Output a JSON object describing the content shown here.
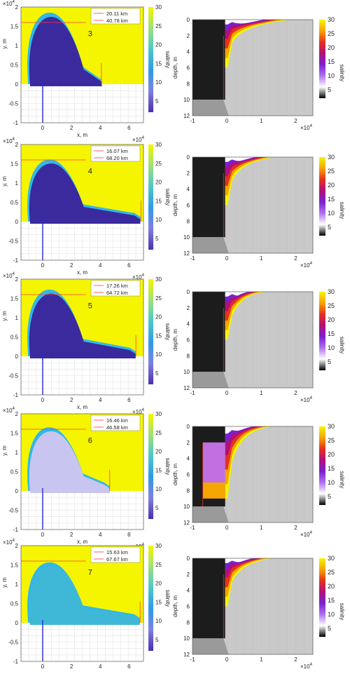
{
  "colors": {
    "background_yellow": "#f5f500",
    "plume_dark": "#3a2a9e",
    "plume_edge": "#33b8e6",
    "land_gray": "#c9c9c9",
    "dark_fill": "#1c1c1c",
    "red_line": "#ff3b30",
    "blue_line": "#2a2ad4",
    "label_yellow_text": "#111111"
  },
  "chart_data": [
    {
      "type": "heatmap",
      "view": "plan",
      "panel_number": "3",
      "legend": [
        "20.11 km",
        "40.78 km"
      ],
      "xlabel": "x, m",
      "ylabel": "y, m",
      "x_exponent": "×10",
      "x_exponent_power": "4",
      "y_exponent": "×10",
      "y_exponent_power": "4",
      "x_ticks": [
        "0",
        "2",
        "4",
        "6"
      ],
      "y_ticks": [
        "2",
        "1.5",
        "1",
        "0.5",
        "0",
        "-0.5",
        "-1"
      ],
      "colorbar_label": "salinity",
      "colorbar_ticks": [
        "30",
        "25",
        "20",
        "15",
        "10",
        "5"
      ],
      "colorbar_colors": [
        "#f5f500",
        "#9fe07a",
        "#4fc7c8",
        "#2d9be6",
        "#8080e0",
        "#4a2fb0"
      ],
      "xlim": [
        -1.5,
        7
      ],
      "ylim": [
        -1,
        2
      ],
      "plume_width_km": 20.11,
      "plume_length_km": 40.78
    },
    {
      "type": "heatmap",
      "view": "section",
      "ylabel": "depth, m",
      "x_exponent": "×10",
      "x_exponent_power": "4",
      "x_ticks": [
        "-1",
        "0",
        "1",
        "2"
      ],
      "y_ticks": [
        "0",
        "2",
        "4",
        "6",
        "8",
        "10",
        "12"
      ],
      "colorbar_label": "salinity",
      "colorbar_ticks": [
        "30",
        "25",
        "20",
        "15",
        "10",
        "5"
      ],
      "colorbar_colors": [
        "#f5f500",
        "#f5a500",
        "#e63020",
        "#b0107a",
        "#7a20d0",
        "#b070f0",
        "#ffffff",
        "#000000"
      ],
      "xlim": [
        -1,
        2.5
      ],
      "ylim": [
        0,
        12
      ]
    },
    {
      "type": "heatmap",
      "view": "plan",
      "panel_number": "4",
      "legend": [
        "16.07 km",
        "68.20 km"
      ],
      "xlabel": "x, m",
      "ylabel": "y, m",
      "x_exponent": "×10",
      "x_exponent_power": "4",
      "y_exponent": "×10",
      "y_exponent_power": "4",
      "x_ticks": [
        "0",
        "2",
        "4",
        "6"
      ],
      "y_ticks": [
        "2",
        "1.5",
        "1",
        "0.5",
        "0",
        "-0.5",
        "-1"
      ],
      "colorbar_label": "salinity",
      "colorbar_ticks": [
        "30",
        "25",
        "20",
        "15",
        "10",
        "5"
      ],
      "colorbar_colors": [
        "#f5f500",
        "#9fe07a",
        "#4fc7c8",
        "#2d9be6",
        "#8080e0",
        "#4a2fb0"
      ],
      "xlim": [
        -1.5,
        7
      ],
      "ylim": [
        -1,
        2
      ],
      "plume_width_km": 16.07,
      "plume_length_km": 68.2
    },
    {
      "type": "heatmap",
      "view": "section",
      "ylabel": "depth, m",
      "x_exponent": "×10",
      "x_exponent_power": "4",
      "x_ticks": [
        "-1",
        "0",
        "1",
        "2"
      ],
      "y_ticks": [
        "0",
        "2",
        "4",
        "6",
        "8",
        "10",
        "12"
      ],
      "colorbar_label": "salinity",
      "colorbar_ticks": [
        "30",
        "25",
        "20",
        "15",
        "10",
        "5"
      ],
      "colorbar_colors": [
        "#f5f500",
        "#f5a500",
        "#e63020",
        "#b0107a",
        "#7a20d0",
        "#b070f0",
        "#ffffff",
        "#000000"
      ],
      "xlim": [
        -1,
        2.5
      ],
      "ylim": [
        0,
        12
      ]
    },
    {
      "type": "heatmap",
      "view": "plan",
      "panel_number": "5",
      "legend": [
        "17.26 km",
        "64.72 km"
      ],
      "xlabel": "x, m",
      "ylabel": "y, m",
      "x_exponent": "×10",
      "x_exponent_power": "4",
      "y_exponent": "×10",
      "y_exponent_power": "4",
      "x_ticks": [
        "0",
        "2",
        "4",
        "6"
      ],
      "y_ticks": [
        "2",
        "1.5",
        "1",
        "0.5",
        "0",
        "-0.5",
        "-1"
      ],
      "colorbar_label": "salinity",
      "colorbar_ticks": [
        "30",
        "25",
        "20",
        "15",
        "10",
        "5"
      ],
      "colorbar_colors": [
        "#f5f500",
        "#9fe07a",
        "#4fc7c8",
        "#2d9be6",
        "#8080e0",
        "#4a2fb0"
      ],
      "xlim": [
        -1.5,
        7
      ],
      "ylim": [
        -1,
        2
      ],
      "plume_width_km": 17.26,
      "plume_length_km": 64.72
    },
    {
      "type": "heatmap",
      "view": "section",
      "ylabel": "depth, m",
      "x_exponent": "×10",
      "x_exponent_power": "4",
      "x_ticks": [
        "-1",
        "0",
        "1",
        "2"
      ],
      "y_ticks": [
        "0",
        "2",
        "4",
        "6",
        "8",
        "10",
        "12"
      ],
      "colorbar_label": "salinity",
      "colorbar_ticks": [
        "30",
        "25",
        "20",
        "15",
        "10",
        "5"
      ],
      "colorbar_colors": [
        "#f5f500",
        "#f5a500",
        "#e63020",
        "#b0107a",
        "#7a20d0",
        "#b070f0",
        "#ffffff",
        "#000000"
      ],
      "xlim": [
        -1,
        2.5
      ],
      "ylim": [
        0,
        12
      ]
    },
    {
      "type": "heatmap",
      "view": "plan",
      "panel_number": "6",
      "legend": [
        "16.46 km",
        "46.58 km"
      ],
      "xlabel": "x, m",
      "ylabel": "y, m",
      "x_exponent": "×10",
      "x_exponent_power": "4",
      "y_exponent": "×10",
      "y_exponent_power": "4",
      "x_ticks": [
        "0",
        "2",
        "4",
        "6"
      ],
      "y_ticks": [
        "2",
        "1.5",
        "1",
        "0.5",
        "0",
        "-0.5",
        "-1"
      ],
      "colorbar_label": "salinity",
      "colorbar_ticks": [
        "30",
        "25",
        "20",
        "15",
        "10",
        "5"
      ],
      "colorbar_colors": [
        "#f5f500",
        "#9fe07a",
        "#4fc7c8",
        "#2d9be6",
        "#8080e0",
        "#4a2fb0"
      ],
      "xlim": [
        -1.5,
        7
      ],
      "ylim": [
        -1,
        2
      ],
      "plume_width_km": 16.46,
      "plume_length_km": 46.58
    },
    {
      "type": "heatmap",
      "view": "section",
      "ylabel": "depth, m",
      "x_exponent": "×10",
      "x_exponent_power": "4",
      "x_ticks": [
        "-1",
        "0",
        "1",
        "2"
      ],
      "y_ticks": [
        "0",
        "2",
        "4",
        "6",
        "8",
        "10",
        "12"
      ],
      "colorbar_label": "salinity",
      "colorbar_ticks": [
        "30",
        "25",
        "20",
        "15",
        "10",
        "5"
      ],
      "colorbar_colors": [
        "#f5f500",
        "#f5a500",
        "#e63020",
        "#b0107a",
        "#7a20d0",
        "#b070f0",
        "#ffffff",
        "#000000"
      ],
      "xlim": [
        -1,
        2.5
      ],
      "ylim": [
        0,
        12
      ]
    },
    {
      "type": "heatmap",
      "view": "plan",
      "panel_number": "7",
      "legend": [
        "15.63 km",
        "67.67 km"
      ],
      "xlabel": "x, m",
      "ylabel": "y, m",
      "x_exponent": "×10",
      "x_exponent_power": "4",
      "y_exponent": "×10",
      "y_exponent_power": "4",
      "x_ticks": [
        "0",
        "2",
        "4",
        "6"
      ],
      "y_ticks": [
        "2",
        "1.5",
        "1",
        "0.5",
        "0",
        "-0.5",
        "-1"
      ],
      "colorbar_label": "salinity",
      "colorbar_ticks": [
        "30",
        "25",
        "20",
        "15",
        "10",
        "5"
      ],
      "colorbar_colors": [
        "#f5f500",
        "#9fe07a",
        "#4fc7c8",
        "#2d9be6",
        "#8080e0",
        "#4a2fb0"
      ],
      "xlim": [
        -1.5,
        7
      ],
      "ylim": [
        -1,
        2
      ],
      "plume_width_km": 15.63,
      "plume_length_km": 67.67
    },
    {
      "type": "heatmap",
      "view": "section",
      "ylabel": "depth, m",
      "x_exponent": "×10",
      "x_exponent_power": "4",
      "x_ticks": [
        "-1",
        "0",
        "1",
        "2"
      ],
      "y_ticks": [
        "0",
        "2",
        "4",
        "6",
        "8",
        "10",
        "12"
      ],
      "colorbar_label": "salinity",
      "colorbar_ticks": [
        "30",
        "25",
        "20",
        "15",
        "10",
        "5"
      ],
      "colorbar_colors": [
        "#f5f500",
        "#f5a500",
        "#e63020",
        "#b0107a",
        "#7a20d0",
        "#b070f0",
        "#ffffff",
        "#000000"
      ],
      "xlim": [
        -1,
        2.5
      ],
      "ylim": [
        0,
        12
      ]
    }
  ]
}
